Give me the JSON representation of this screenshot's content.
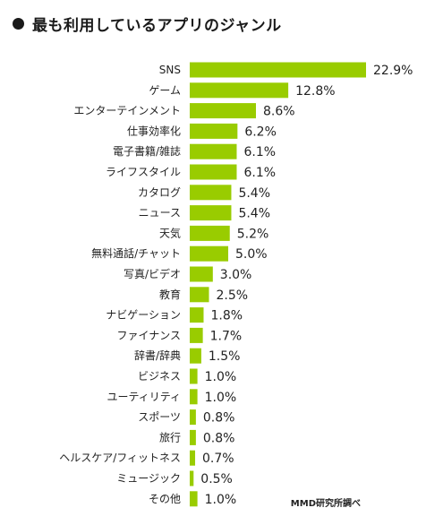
{
  "header": {
    "title": "最も利用しているアプリのジャンル"
  },
  "source_note": "MMD研究所調べ",
  "colors": {
    "bar": "#99cc00",
    "text": "#222222"
  },
  "chart_data": {
    "type": "bar",
    "orientation": "horizontal",
    "title": "最も利用しているアプリのジャンル",
    "categories": [
      "SNS",
      "ゲーム",
      "エンターテインメント",
      "仕事効率化",
      "電子書籍/雑誌",
      "ライフスタイル",
      "カタログ",
      "ニュース",
      "天気",
      "無料通話/チャット",
      "写真/ビデオ",
      "教育",
      "ナビゲーション",
      "ファイナンス",
      "辞書/辞典",
      "ビジネス",
      "ユーティリティ",
      "スポーツ",
      "旅行",
      "ヘルスケア/フィットネス",
      "ミュージック",
      "その他"
    ],
    "values": [
      22.9,
      12.8,
      8.6,
      6.2,
      6.1,
      6.1,
      5.4,
      5.4,
      5.2,
      5.0,
      3.0,
      2.5,
      1.8,
      1.7,
      1.5,
      1.0,
      1.0,
      0.8,
      0.8,
      0.7,
      0.5,
      1.0
    ],
    "value_labels": [
      "22.9%",
      "12.8%",
      "8.6%",
      "6.2%",
      "6.1%",
      "6.1%",
      "5.4%",
      "5.4%",
      "5.2%",
      "5.0%",
      "3.0%",
      "2.5%",
      "1.8%",
      "1.7%",
      "1.5%",
      "1.0%",
      "1.0%",
      "0.8%",
      "0.8%",
      "0.7%",
      "0.5%",
      "1.0%"
    ],
    "unit": "%",
    "xlim": [
      0,
      22.9
    ],
    "grid": false,
    "legend": "none"
  }
}
